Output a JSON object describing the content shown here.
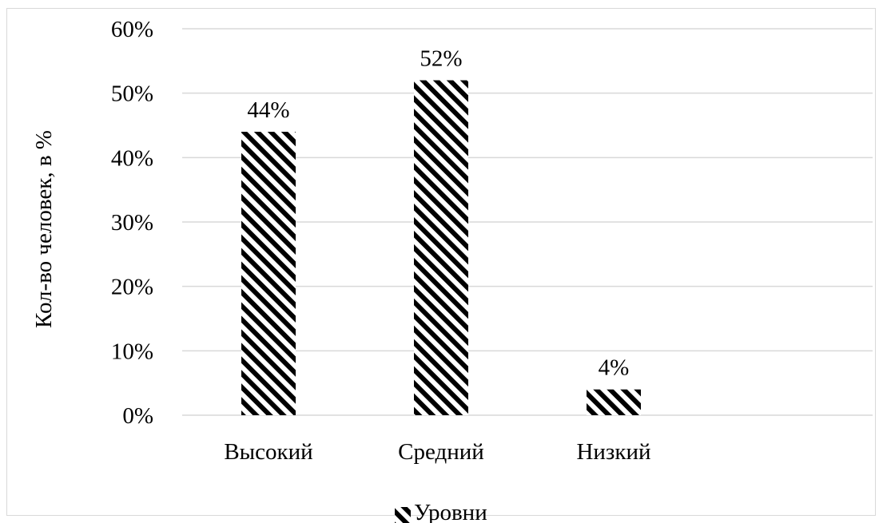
{
  "chart_data": {
    "type": "bar",
    "categories": [
      "Высокий",
      "Средний",
      "Низкий"
    ],
    "series": [
      {
        "name": "Уровни",
        "values": [
          44,
          52,
          4
        ],
        "value_labels": [
          "44%",
          "52%",
          "4%"
        ]
      }
    ],
    "ylabel": "Кол-во человек, в %",
    "xlabel": "",
    "ylim": [
      0,
      60
    ],
    "y_ticks": [
      "0%",
      "10%",
      "20%",
      "30%",
      "40%",
      "50%",
      "60%"
    ],
    "grid": true,
    "legend": "bottom",
    "bar_fill": "diagonal-hatch-black",
    "colors": {
      "bar": "#000000",
      "grid": "#d9d9d9",
      "border": "#d9d9d9"
    }
  }
}
